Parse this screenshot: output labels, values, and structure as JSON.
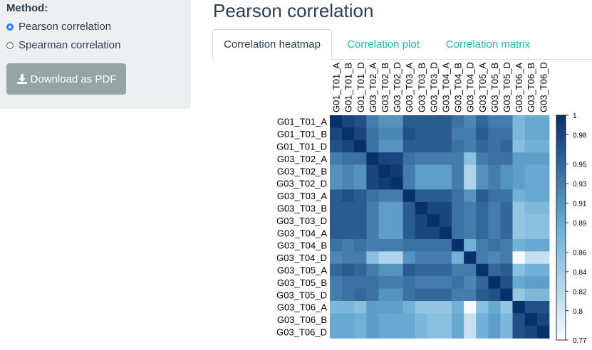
{
  "sidebar": {
    "method_label": "Method:",
    "options": [
      {
        "label": "Pearson correlation",
        "selected": true
      },
      {
        "label": "Spearman correlation",
        "selected": false
      }
    ],
    "download_label": "Download as PDF"
  },
  "main": {
    "title": "Pearson correlation",
    "tabs": [
      {
        "label": "Correlation heatmap",
        "active": true
      },
      {
        "label": "Correlation plot",
        "active": false
      },
      {
        "label": "Correlation matrix",
        "active": false
      }
    ]
  },
  "colors": {
    "accent": "#18bc9c",
    "sidebar_bg": "#ecf0f1",
    "button_bg": "#95a5a6",
    "heat_low": "#f7fbff",
    "heat_high": "#08306b"
  },
  "chart_data": {
    "type": "heatmap",
    "labels": [
      "G01_T01_A",
      "G01_T01_B",
      "G01_T01_D",
      "G03_T02_A",
      "G03_T02_B",
      "G03_T02_D",
      "G03_T03_A",
      "G03_T03_B",
      "G03_T03_D",
      "G03_T04_A",
      "G03_T04_B",
      "G03_T04_D",
      "G03_T05_A",
      "G03_T05_B",
      "G03_T05_D",
      "G03_T06_A",
      "G03_T06_B",
      "G03_T06_D"
    ],
    "values": [
      [
        1.0,
        0.98,
        0.97,
        0.93,
        0.91,
        0.91,
        0.96,
        0.96,
        0.96,
        0.96,
        0.94,
        0.92,
        0.95,
        0.93,
        0.93,
        0.87,
        0.89,
        0.89
      ],
      [
        0.98,
        1.0,
        0.98,
        0.94,
        0.92,
        0.92,
        0.97,
        0.96,
        0.96,
        0.96,
        0.93,
        0.93,
        0.96,
        0.94,
        0.94,
        0.87,
        0.89,
        0.89
      ],
      [
        0.97,
        0.98,
        1.0,
        0.94,
        0.91,
        0.91,
        0.96,
        0.96,
        0.96,
        0.96,
        0.94,
        0.93,
        0.95,
        0.94,
        0.95,
        0.86,
        0.88,
        0.88
      ],
      [
        0.93,
        0.94,
        0.94,
        1.0,
        0.98,
        0.98,
        0.94,
        0.93,
        0.93,
        0.93,
        0.93,
        0.86,
        0.93,
        0.94,
        0.94,
        0.9,
        0.9,
        0.9
      ],
      [
        0.91,
        0.92,
        0.91,
        0.98,
        1.0,
        0.99,
        0.93,
        0.9,
        0.9,
        0.9,
        0.93,
        0.83,
        0.91,
        0.93,
        0.91,
        0.9,
        0.89,
        0.89
      ],
      [
        0.91,
        0.92,
        0.91,
        0.98,
        0.99,
        1.0,
        0.93,
        0.9,
        0.9,
        0.9,
        0.93,
        0.83,
        0.91,
        0.93,
        0.91,
        0.9,
        0.89,
        0.89
      ],
      [
        0.96,
        0.97,
        0.96,
        0.94,
        0.93,
        0.93,
        1.0,
        0.96,
        0.96,
        0.96,
        0.94,
        0.91,
        0.96,
        0.94,
        0.94,
        0.88,
        0.89,
        0.89
      ],
      [
        0.96,
        0.96,
        0.96,
        0.93,
        0.9,
        0.9,
        0.96,
        1.0,
        0.98,
        0.98,
        0.94,
        0.93,
        0.95,
        0.93,
        0.95,
        0.85,
        0.87,
        0.87
      ],
      [
        0.96,
        0.96,
        0.96,
        0.93,
        0.9,
        0.9,
        0.96,
        0.98,
        1.0,
        0.98,
        0.94,
        0.93,
        0.95,
        0.93,
        0.95,
        0.85,
        0.86,
        0.86
      ],
      [
        0.96,
        0.96,
        0.96,
        0.93,
        0.9,
        0.9,
        0.96,
        0.98,
        0.98,
        1.0,
        0.94,
        0.93,
        0.95,
        0.93,
        0.95,
        0.85,
        0.86,
        0.86
      ],
      [
        0.94,
        0.93,
        0.94,
        0.93,
        0.93,
        0.93,
        0.94,
        0.94,
        0.94,
        0.94,
        1.0,
        0.88,
        0.93,
        0.94,
        0.93,
        0.88,
        0.89,
        0.89
      ],
      [
        0.92,
        0.93,
        0.93,
        0.86,
        0.83,
        0.83,
        0.91,
        0.93,
        0.93,
        0.93,
        0.88,
        1.0,
        0.93,
        0.92,
        0.93,
        0.77,
        0.81,
        0.81
      ],
      [
        0.95,
        0.96,
        0.95,
        0.93,
        0.91,
        0.91,
        0.96,
        0.95,
        0.95,
        0.95,
        0.93,
        0.93,
        1.0,
        0.95,
        0.96,
        0.86,
        0.88,
        0.88
      ],
      [
        0.93,
        0.94,
        0.94,
        0.94,
        0.93,
        0.93,
        0.94,
        0.93,
        0.93,
        0.93,
        0.94,
        0.92,
        0.95,
        1.0,
        0.97,
        0.89,
        0.9,
        0.9
      ],
      [
        0.93,
        0.94,
        0.95,
        0.94,
        0.91,
        0.91,
        0.94,
        0.95,
        0.95,
        0.95,
        0.93,
        0.93,
        0.96,
        0.97,
        1.0,
        0.85,
        0.87,
        0.87
      ],
      [
        0.87,
        0.87,
        0.86,
        0.9,
        0.9,
        0.9,
        0.88,
        0.85,
        0.85,
        0.85,
        0.88,
        0.77,
        0.86,
        0.89,
        0.85,
        1.0,
        0.97,
        0.97
      ],
      [
        0.89,
        0.89,
        0.88,
        0.9,
        0.89,
        0.89,
        0.89,
        0.87,
        0.86,
        0.86,
        0.89,
        0.81,
        0.88,
        0.9,
        0.87,
        0.97,
        1.0,
        0.98
      ],
      [
        0.89,
        0.89,
        0.88,
        0.9,
        0.89,
        0.89,
        0.89,
        0.87,
        0.86,
        0.86,
        0.89,
        0.81,
        0.88,
        0.9,
        0.87,
        0.97,
        0.98,
        1.0
      ]
    ],
    "scale": {
      "min": 0.77,
      "max": 1,
      "ticks": [
        "1",
        "0.98",
        "0.95",
        "0.93",
        "0.91",
        "0.89",
        "0.86",
        "0.84",
        "0.82",
        "0.8",
        "0.77"
      ]
    }
  }
}
